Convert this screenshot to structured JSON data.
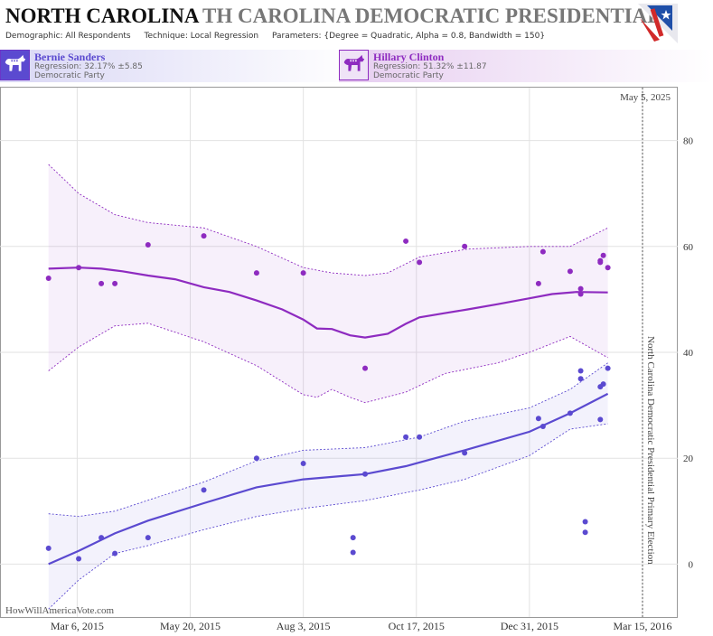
{
  "header": {
    "state": "NORTH CAROLINA",
    "title_repeat": "TH CAROLINA DEMOCRATIC PRESIDENTIAL I",
    "demographic": "Demographic: All Respondents",
    "technique": "Technique: Local Regression",
    "parameters": "Parameters: {Degree = Quadratic, Alpha = 0.8, Bandwidth = 150}"
  },
  "candidates": [
    {
      "name": "Bernie Sanders",
      "regression": "Regression: 32.17% ±5.85",
      "party": "Democratic Party",
      "color": "#5b4ad0"
    },
    {
      "name": "Hillary Clinton",
      "regression": "Regression: 51.32% ±11.87",
      "party": "Democratic Party",
      "color": "#8e2bc0"
    }
  ],
  "watermark": "HowWillAmericaVote.com",
  "chart_data": {
    "type": "scatter",
    "title": "",
    "date_label": "May 5, 2025",
    "election_label": "North Carolina Democratic Presidential Primary Election",
    "x_tick_labels": [
      "Mar 6, 2015",
      "May 20, 2015",
      "Aug 3, 2015",
      "Oct 17, 2015",
      "Dec 31, 2015",
      "Mar 15, 2016"
    ],
    "x_tick_dates": [
      "2015-03-06",
      "2015-05-20",
      "2015-08-03",
      "2015-10-17",
      "2015-12-31",
      "2016-03-15"
    ],
    "xlim": [
      "2015-01-21",
      "2016-03-15"
    ],
    "y_ticks": [
      0,
      20,
      40,
      60,
      80
    ],
    "ylim": [
      -10,
      90
    ],
    "grid": true,
    "series": [
      {
        "name": "Hillary Clinton",
        "color": "#8e2bc0",
        "points": [
          [
            "2015-02-15",
            54
          ],
          [
            "2015-03-07",
            56
          ],
          [
            "2015-03-22",
            53
          ],
          [
            "2015-03-31",
            53
          ],
          [
            "2015-04-22",
            60.3
          ],
          [
            "2015-05-29",
            62
          ],
          [
            "2015-07-03",
            55
          ],
          [
            "2015-08-03",
            55
          ],
          [
            "2015-09-13",
            37
          ],
          [
            "2015-10-10",
            61
          ],
          [
            "2015-10-19",
            57
          ],
          [
            "2015-11-18",
            60
          ],
          [
            "2016-01-06",
            53
          ],
          [
            "2016-01-09",
            59
          ],
          [
            "2016-01-27",
            55.3
          ],
          [
            "2016-02-03",
            52
          ],
          [
            "2016-02-03",
            51
          ],
          [
            "2016-02-16",
            57.3
          ],
          [
            "2016-02-16",
            57
          ],
          [
            "2016-02-18",
            58.3
          ],
          [
            "2016-02-21",
            56
          ]
        ],
        "trend": [
          [
            "2015-02-15",
            55.8
          ],
          [
            "2015-03-07",
            56
          ],
          [
            "2015-03-22",
            55.8
          ],
          [
            "2015-04-05",
            55.3
          ],
          [
            "2015-04-22",
            54.5
          ],
          [
            "2015-05-10",
            53.8
          ],
          [
            "2015-05-29",
            52.3
          ],
          [
            "2015-06-15",
            51.4
          ],
          [
            "2015-07-03",
            49.8
          ],
          [
            "2015-07-20",
            48.1
          ],
          [
            "2015-08-03",
            46.2
          ],
          [
            "2015-08-12",
            44.5
          ],
          [
            "2015-08-22",
            44.4
          ],
          [
            "2015-09-03",
            43.2
          ],
          [
            "2015-09-13",
            42.8
          ],
          [
            "2015-09-28",
            43.5
          ],
          [
            "2015-10-10",
            45.4
          ],
          [
            "2015-10-19",
            46.6
          ],
          [
            "2015-11-05",
            47.4
          ],
          [
            "2015-11-20",
            48.1
          ],
          [
            "2015-12-10",
            49.1
          ],
          [
            "2015-12-31",
            50.2
          ],
          [
            "2016-01-15",
            51
          ],
          [
            "2016-01-31",
            51.4
          ],
          [
            "2016-02-21",
            51.32
          ]
        ],
        "upper": [
          [
            "2015-02-15",
            75.5
          ],
          [
            "2015-03-07",
            70
          ],
          [
            "2015-03-31",
            66
          ],
          [
            "2015-04-22",
            64.5
          ],
          [
            "2015-05-29",
            63.5
          ],
          [
            "2015-07-03",
            60
          ],
          [
            "2015-08-03",
            56
          ],
          [
            "2015-08-22",
            55
          ],
          [
            "2015-09-13",
            54.5
          ],
          [
            "2015-09-28",
            55
          ],
          [
            "2015-10-19",
            58
          ],
          [
            "2015-11-20",
            59.5
          ],
          [
            "2015-12-31",
            60
          ],
          [
            "2016-01-27",
            60
          ],
          [
            "2016-02-21",
            63.5
          ]
        ],
        "lower": [
          [
            "2015-02-15",
            36.5
          ],
          [
            "2015-03-07",
            41
          ],
          [
            "2015-03-31",
            45
          ],
          [
            "2015-04-22",
            45.5
          ],
          [
            "2015-05-29",
            42
          ],
          [
            "2015-07-03",
            37.5
          ],
          [
            "2015-08-03",
            32
          ],
          [
            "2015-08-12",
            31.5
          ],
          [
            "2015-08-22",
            33
          ],
          [
            "2015-09-03",
            31.5
          ],
          [
            "2015-09-13",
            30.5
          ],
          [
            "2015-10-10",
            32.5
          ],
          [
            "2015-11-05",
            36
          ],
          [
            "2015-12-10",
            38
          ],
          [
            "2015-12-31",
            40
          ],
          [
            "2016-01-27",
            43
          ],
          [
            "2016-02-21",
            39
          ]
        ]
      },
      {
        "name": "Bernie Sanders",
        "color": "#5b4ad0",
        "points": [
          [
            "2015-02-15",
            3
          ],
          [
            "2015-03-07",
            1
          ],
          [
            "2015-03-22",
            5
          ],
          [
            "2015-03-31",
            2
          ],
          [
            "2015-04-22",
            5
          ],
          [
            "2015-05-29",
            14
          ],
          [
            "2015-07-03",
            20
          ],
          [
            "2015-08-03",
            19
          ],
          [
            "2015-09-05",
            2.2
          ],
          [
            "2015-09-05",
            5
          ],
          [
            "2015-09-13",
            17
          ],
          [
            "2015-10-10",
            24
          ],
          [
            "2015-10-19",
            24
          ],
          [
            "2015-11-18",
            21
          ],
          [
            "2016-01-06",
            27.5
          ],
          [
            "2016-01-09",
            26
          ],
          [
            "2016-01-27",
            28.5
          ],
          [
            "2016-02-03",
            35
          ],
          [
            "2016-02-03",
            36.5
          ],
          [
            "2016-02-06",
            8
          ],
          [
            "2016-02-06",
            6
          ],
          [
            "2016-02-16",
            33.5
          ],
          [
            "2016-02-16",
            27.3
          ],
          [
            "2016-02-18",
            34
          ],
          [
            "2016-02-21",
            37
          ]
        ],
        "trend": [
          [
            "2015-02-15",
            0
          ],
          [
            "2015-03-07",
            2.5
          ],
          [
            "2015-03-31",
            5.8
          ],
          [
            "2015-04-22",
            8.2
          ],
          [
            "2015-05-29",
            11.5
          ],
          [
            "2015-07-03",
            14.5
          ],
          [
            "2015-08-03",
            16
          ],
          [
            "2015-09-13",
            17
          ],
          [
            "2015-10-10",
            18.5
          ],
          [
            "2015-10-19",
            19.2
          ],
          [
            "2015-11-18",
            21.5
          ],
          [
            "2015-12-31",
            25
          ],
          [
            "2016-01-27",
            28.5
          ],
          [
            "2016-02-21",
            32.17
          ]
        ],
        "upper": [
          [
            "2015-02-15",
            9.5
          ],
          [
            "2015-03-07",
            9
          ],
          [
            "2015-03-31",
            10
          ],
          [
            "2015-05-29",
            15.5
          ],
          [
            "2015-07-03",
            19.5
          ],
          [
            "2015-08-03",
            21.5
          ],
          [
            "2015-09-13",
            22
          ],
          [
            "2015-10-19",
            24
          ],
          [
            "2015-11-18",
            27
          ],
          [
            "2015-12-31",
            29.5
          ],
          [
            "2016-01-27",
            33
          ],
          [
            "2016-02-21",
            38
          ]
        ],
        "lower": [
          [
            "2015-02-15",
            -8.5
          ],
          [
            "2015-03-07",
            -3
          ],
          [
            "2015-03-31",
            2
          ],
          [
            "2015-04-22",
            3.5
          ],
          [
            "2015-05-29",
            6.5
          ],
          [
            "2015-07-03",
            9
          ],
          [
            "2015-08-03",
            10.5
          ],
          [
            "2015-09-13",
            12
          ],
          [
            "2015-10-19",
            14
          ],
          [
            "2015-11-18",
            16
          ],
          [
            "2015-12-31",
            20.5
          ],
          [
            "2016-01-27",
            25.5
          ],
          [
            "2016-02-21",
            26.5
          ]
        ]
      }
    ]
  }
}
